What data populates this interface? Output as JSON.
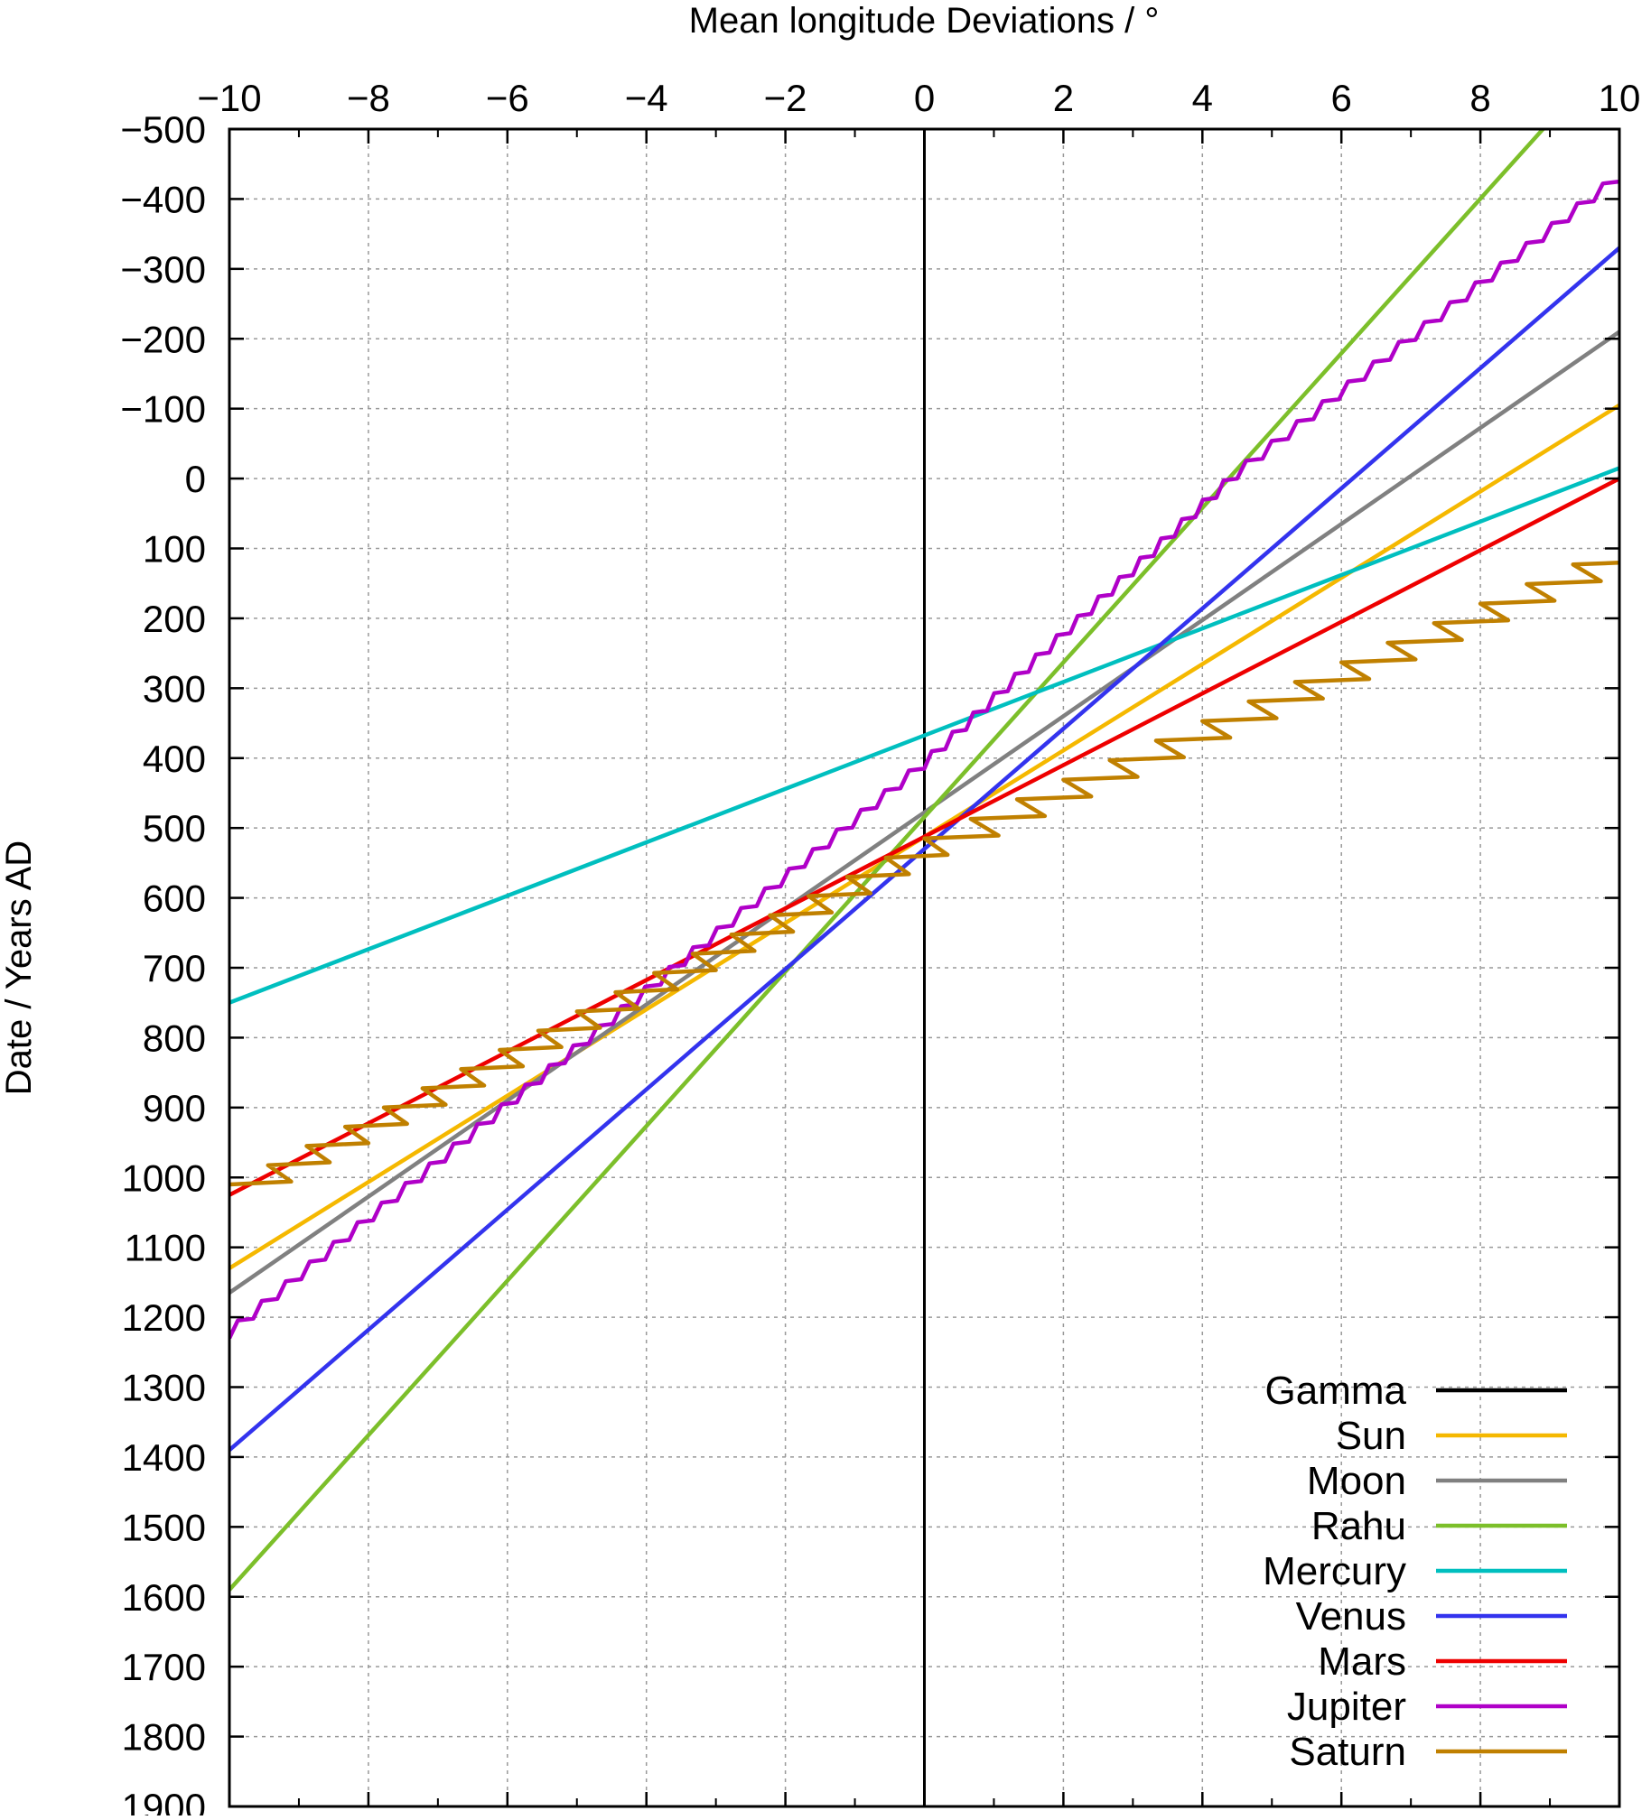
{
  "chart_data": {
    "type": "line",
    "xlabel": "Mean longitude Deviations / °",
    "ylabel": "Date / Years AD",
    "xlim": [
      -10,
      10
    ],
    "ylim": [
      -500,
      1900
    ],
    "y_inverted": true,
    "x_axis_position": "top",
    "grid": true,
    "x_ticks": [
      -10,
      -8,
      -6,
      -4,
      -2,
      0,
      2,
      4,
      6,
      8,
      10
    ],
    "x_tick_labels": [
      "−10",
      "−8",
      "−6",
      "−4",
      "−2",
      "0",
      "2",
      "4",
      "6",
      "8",
      "10"
    ],
    "y_ticks": [
      -500,
      -400,
      -300,
      -200,
      -100,
      0,
      100,
      200,
      300,
      400,
      500,
      600,
      700,
      800,
      900,
      1000,
      1100,
      1200,
      1300,
      1400,
      1500,
      1600,
      1700,
      1800,
      1900
    ],
    "y_tick_labels": [
      "−500",
      "−400",
      "−300",
      "−200",
      "−100",
      "0",
      "100",
      "200",
      "300",
      "400",
      "500",
      "600",
      "700",
      "800",
      "900",
      "1000",
      "1100",
      "1200",
      "1300",
      "1400",
      "1500",
      "1600",
      "1700",
      "1800",
      "1900"
    ],
    "legend_position": "bottom-right",
    "series": [
      {
        "name": "Gamma",
        "color": "#000000",
        "x": [
          0,
          0
        ],
        "y": [
          -500,
          1900
        ]
      },
      {
        "name": "Sun",
        "color": "#f5b800",
        "x": [
          -10,
          10
        ],
        "y": [
          1130,
          -105
        ]
      },
      {
        "name": "Moon",
        "color": "#808080",
        "x": [
          -10,
          10
        ],
        "y": [
          1165,
          -210
        ]
      },
      {
        "name": "Rahu",
        "color": "#7cbf2a",
        "x": [
          -10,
          8.9
        ],
        "y": [
          1590,
          -500
        ]
      },
      {
        "name": "Mercury",
        "color": "#00bfbf",
        "x": [
          -10,
          10
        ],
        "y": [
          750,
          -15
        ]
      },
      {
        "name": "Venus",
        "color": "#3333ee",
        "x": [
          -10,
          10
        ],
        "y": [
          1390,
          -330
        ]
      },
      {
        "name": "Mars",
        "color": "#ee0000",
        "x": [
          -10,
          10
        ],
        "y": [
          1025,
          0
        ]
      },
      {
        "name": "Jupiter",
        "color": "#b000c8",
        "x": [
          -10,
          0,
          4.5,
          10
        ],
        "y": [
          1230,
          415,
          0,
          -425
        ],
        "stepped": true
      },
      {
        "name": "Saturn",
        "color": "#c08000",
        "x": [
          -10,
          0,
          10
        ],
        "y": [
          1010,
          515,
          95
        ],
        "stepped": true
      }
    ]
  }
}
